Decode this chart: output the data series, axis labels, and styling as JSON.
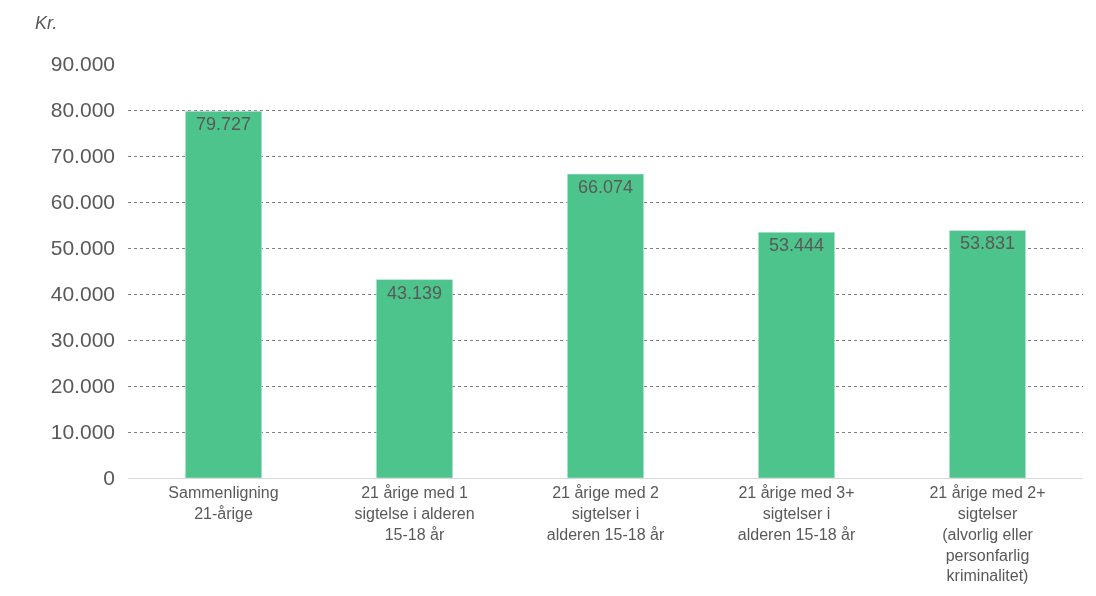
{
  "chart_data": {
    "type": "bar",
    "ylabel": "Kr.",
    "categories": [
      "Sammenligning 21-årige",
      "21 årige med 1 sigtelse i alderen 15-18 år",
      "21 årige med 2 sigtelser i alderen 15-18 år",
      "21 årige med 3+ sigtelser i alderen 15-18 år",
      "21 årige med 2+ sigtelser (alvorlig eller personfarlig kriminalitet)"
    ],
    "values": [
      79727,
      43139,
      66074,
      53444,
      53831
    ],
    "value_labels": [
      "79.727",
      "43.139",
      "66.074",
      "53.444",
      "53.831"
    ],
    "color": "#4cc48c",
    "ylim": [
      0,
      90000
    ],
    "yticks": [
      0,
      {
        "value": 10000,
        "label": "10.000"
      },
      {
        "value": 20000,
        "label": "20.000"
      },
      {
        "value": 30000,
        "label": "30.000"
      },
      {
        "value": 40000,
        "label": "40.000"
      },
      {
        "value": 50000,
        "label": "50.000"
      },
      {
        "value": 60000,
        "label": "60.000"
      },
      {
        "value": 70000,
        "label": "70.000"
      },
      {
        "value": 80000,
        "label": "80.000"
      },
      {
        "value": 90000,
        "label": "90.000"
      }
    ],
    "grid": "y",
    "legend": false
  }
}
